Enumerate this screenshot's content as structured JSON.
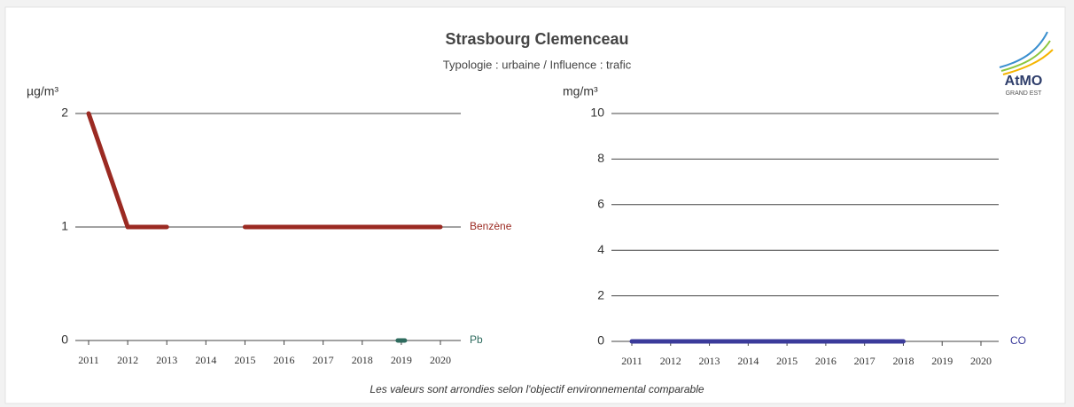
{
  "header": {
    "title": "Strasbourg Clemenceau",
    "subtitle": "Typologie : urbaine /  Influence : trafic",
    "note": "Les valeurs sont arrondies selon l'objectif environnemental comparable",
    "logo": {
      "name": "AtMO",
      "region": "GRAND EST"
    }
  },
  "chart_data": [
    {
      "type": "line",
      "y_label": "µg/m³",
      "categories": [
        "2011",
        "2012",
        "2013",
        "2014",
        "2015",
        "2016",
        "2017",
        "2018",
        "2019",
        "2020"
      ],
      "ylim": [
        0,
        2
      ],
      "yticks": [
        0,
        1,
        2
      ],
      "grid": true,
      "series": [
        {
          "name": "Benzène",
          "color": "#9b2a22",
          "values": [
            2,
            1,
            1,
            null,
            1,
            1,
            1,
            1,
            1,
            1
          ]
        },
        {
          "name": "Pb",
          "color": "#2e6b5e",
          "values": [
            null,
            null,
            null,
            null,
            null,
            null,
            null,
            null,
            0,
            null
          ]
        }
      ]
    },
    {
      "type": "line",
      "y_label": "mg/m³",
      "categories": [
        "2011",
        "2012",
        "2013",
        "2014",
        "2015",
        "2016",
        "2017",
        "2018",
        "2019",
        "2020"
      ],
      "ylim": [
        0,
        10
      ],
      "yticks": [
        0,
        2,
        4,
        6,
        8,
        10
      ],
      "grid": true,
      "series": [
        {
          "name": "CO",
          "color": "#3b3b9b",
          "values": [
            0,
            0,
            0,
            0,
            0,
            0,
            0,
            0,
            null,
            null
          ]
        }
      ]
    }
  ]
}
